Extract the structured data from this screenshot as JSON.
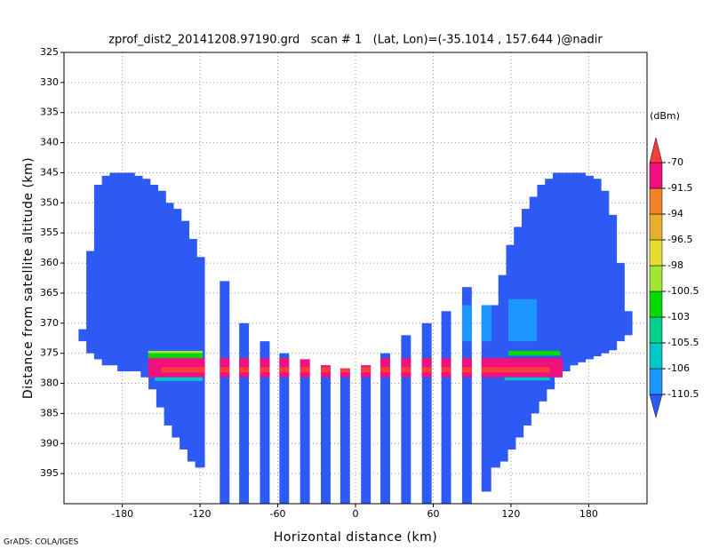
{
  "chart_data": {
    "type": "heatmap",
    "title": "zprof_dist2_20141208.97190.grd   scan # 1   (Lat, Lon)=(-35.1014 , 157.644 )@nadir",
    "x_label": "Horizontal distance (km)",
    "y_label": "Distance from satellite altitude (km)",
    "footer": "GrADS: COLA/IGES",
    "xlim": [
      -225,
      225
    ],
    "xticks": [
      -180,
      -120,
      -60,
      0,
      60,
      120,
      180
    ],
    "ylim": [
      325,
      400
    ],
    "y_inverted": true,
    "yticks": [
      325,
      330,
      335,
      340,
      345,
      350,
      355,
      360,
      365,
      370,
      375,
      380,
      385,
      390,
      395
    ],
    "grid": true,
    "column_color": "#2d5af5",
    "columns": [
      {
        "x": -210,
        "top": 371,
        "bottom": 373
      },
      {
        "x": -204,
        "top": 358,
        "bottom": 375
      },
      {
        "x": -198,
        "top": 347,
        "bottom": 376
      },
      {
        "x": -192,
        "top": 345.5,
        "bottom": 377
      },
      {
        "x": -186,
        "top": 345,
        "bottom": 377
      },
      {
        "x": -180,
        "top": 345,
        "bottom": 378
      },
      {
        "x": -174,
        "top": 345,
        "bottom": 378
      },
      {
        "x": -168,
        "top": 345.5,
        "bottom": 378
      },
      {
        "x": -162,
        "top": 346,
        "bottom": 379
      },
      {
        "x": -156,
        "top": 347,
        "bottom": 381
      },
      {
        "x": -150,
        "top": 348,
        "bottom": 384
      },
      {
        "x": -144,
        "top": 350,
        "bottom": 387
      },
      {
        "x": -138,
        "top": 351,
        "bottom": 389
      },
      {
        "x": -132,
        "top": 353,
        "bottom": 391
      },
      {
        "x": -126,
        "top": 356,
        "bottom": 393
      },
      {
        "x": -120,
        "top": 359,
        "bottom": 394
      },
      {
        "x": -101,
        "top": 363,
        "bottom": 400
      },
      {
        "x": -86,
        "top": 370,
        "bottom": 400
      },
      {
        "x": -70,
        "top": 373,
        "bottom": 400
      },
      {
        "x": -55,
        "top": 375,
        "bottom": 400
      },
      {
        "x": -39,
        "top": 376,
        "bottom": 400
      },
      {
        "x": -23,
        "top": 377,
        "bottom": 400
      },
      {
        "x": -8,
        "top": 377.5,
        "bottom": 400
      },
      {
        "x": 8,
        "top": 377,
        "bottom": 400
      },
      {
        "x": 23,
        "top": 375,
        "bottom": 400
      },
      {
        "x": 39,
        "top": 372,
        "bottom": 400
      },
      {
        "x": 55,
        "top": 370,
        "bottom": 400
      },
      {
        "x": 70,
        "top": 368,
        "bottom": 400
      },
      {
        "x": 86,
        "top": 364,
        "bottom": 400
      },
      {
        "x": 101,
        "top": 367,
        "bottom": 398
      },
      {
        "x": 108,
        "top": 367,
        "bottom": 394
      },
      {
        "x": 114,
        "top": 362,
        "bottom": 393
      },
      {
        "x": 120,
        "top": 357,
        "bottom": 391
      },
      {
        "x": 126,
        "top": 354,
        "bottom": 389
      },
      {
        "x": 132,
        "top": 351,
        "bottom": 387
      },
      {
        "x": 138,
        "top": 349,
        "bottom": 385
      },
      {
        "x": 144,
        "top": 347,
        "bottom": 383
      },
      {
        "x": 150,
        "top": 346,
        "bottom": 381
      },
      {
        "x": 156,
        "top": 345,
        "bottom": 379
      },
      {
        "x": 162,
        "top": 345,
        "bottom": 378
      },
      {
        "x": 168,
        "top": 345,
        "bottom": 377
      },
      {
        "x": 174,
        "top": 345,
        "bottom": 376.5
      },
      {
        "x": 180,
        "top": 345.5,
        "bottom": 376
      },
      {
        "x": 186,
        "top": 346,
        "bottom": 375.5
      },
      {
        "x": 192,
        "top": 348,
        "bottom": 375
      },
      {
        "x": 198,
        "top": 352,
        "bottom": 374.5
      },
      {
        "x": 204,
        "top": 360,
        "bottom": 373
      },
      {
        "x": 210,
        "top": 368,
        "bottom": 372
      }
    ],
    "bands": [
      {
        "color": "#1e96ff",
        "x": [
          82,
          105
        ],
        "y": [
          367,
          373
        ]
      },
      {
        "color": "#1e96ff",
        "x": [
          118,
          140
        ],
        "y": [
          366,
          373
        ]
      },
      {
        "color": "#a0e632",
        "x": [
          -160,
          -118
        ],
        "y": [
          374.6,
          375
        ]
      },
      {
        "color": "#00dc00",
        "x": [
          -160,
          -118
        ],
        "y": [
          375,
          375.8
        ]
      },
      {
        "color": "#00dc00",
        "x": [
          118,
          158
        ],
        "y": [
          374.6,
          375.4
        ]
      },
      {
        "color": "#f01080",
        "x": [
          -160,
          160
        ],
        "y": [
          375.8,
          379
        ]
      },
      {
        "color": "#fa3c3c",
        "x": [
          -150,
          150
        ],
        "y": [
          377.3,
          378.2
        ]
      },
      {
        "color": "#00c8c8",
        "x": [
          -155,
          -118
        ],
        "y": [
          379,
          379.6
        ]
      },
      {
        "color": "#00c8c8",
        "x": [
          115,
          150
        ],
        "y": [
          379,
          379.5
        ]
      }
    ],
    "colorbar": {
      "label": "(dBm)",
      "levels": [
        -110.5,
        -106,
        -105.5,
        -103,
        -100.5,
        -98,
        -96.5,
        -94,
        -91.5,
        -70
      ],
      "colors": [
        "#2d5af5",
        "#1e96ff",
        "#00c8c8",
        "#00d28c",
        "#00dc00",
        "#a0e632",
        "#e6dc32",
        "#e6af2d",
        "#f08228",
        "#f01080",
        "#fa3c3c"
      ]
    }
  }
}
